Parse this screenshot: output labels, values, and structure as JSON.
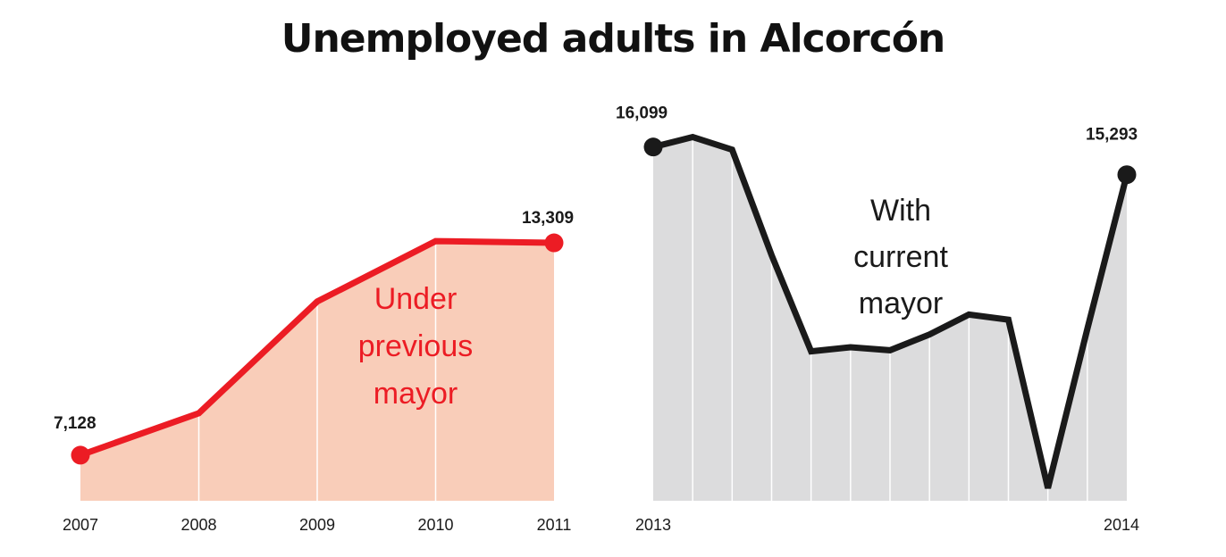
{
  "title": "Unemployed adults in Alcorcón",
  "colors": {
    "previous_line": "#ec1c24",
    "previous_fill": "#f9cdb9",
    "current_line": "#1a1a1a",
    "current_fill": "#dcdcdd",
    "annotation_previous": "#ec1c24",
    "annotation_current": "#1a1a1a"
  },
  "chart_data": [
    {
      "type": "area",
      "annotation": [
        "Under",
        "previous",
        "mayor"
      ],
      "x": [
        "2007",
        "2008",
        "2009",
        "2010",
        "2011"
      ],
      "values": [
        7128,
        8350,
        11600,
        13360,
        13309
      ],
      "point_labels": {
        "start": "7,128",
        "end": "13,309"
      },
      "ylim": [
        5800,
        17000
      ]
    },
    {
      "type": "area",
      "annotation": [
        "With",
        "current",
        "mayor"
      ],
      "x_tick_labels": [
        "2013",
        "2014"
      ],
      "values": [
        16099,
        16390,
        16020,
        12950,
        10150,
        10270,
        10180,
        10640,
        11220,
        11070,
        6170,
        10800,
        15293
      ],
      "values_note_removed": true,
      "point_labels": {
        "start": "16,099",
        "end": "15,293"
      },
      "ylim": [
        5800,
        17000
      ]
    }
  ]
}
